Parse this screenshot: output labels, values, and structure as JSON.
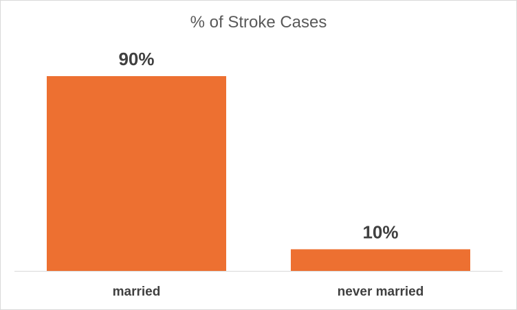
{
  "chart_data": {
    "type": "bar",
    "title": "% of Stroke Cases",
    "categories": [
      "married",
      "never married"
    ],
    "values": [
      90,
      10
    ],
    "data_labels": [
      "90%",
      "10%"
    ],
    "xlabel": "",
    "ylabel": "",
    "ylim": [
      0,
      90
    ],
    "grid": false,
    "legend": "none",
    "bar_color": "#ED7031",
    "axis_color": "#d9d9d9",
    "label_color": "#404040",
    "title_color": "#595959"
  }
}
